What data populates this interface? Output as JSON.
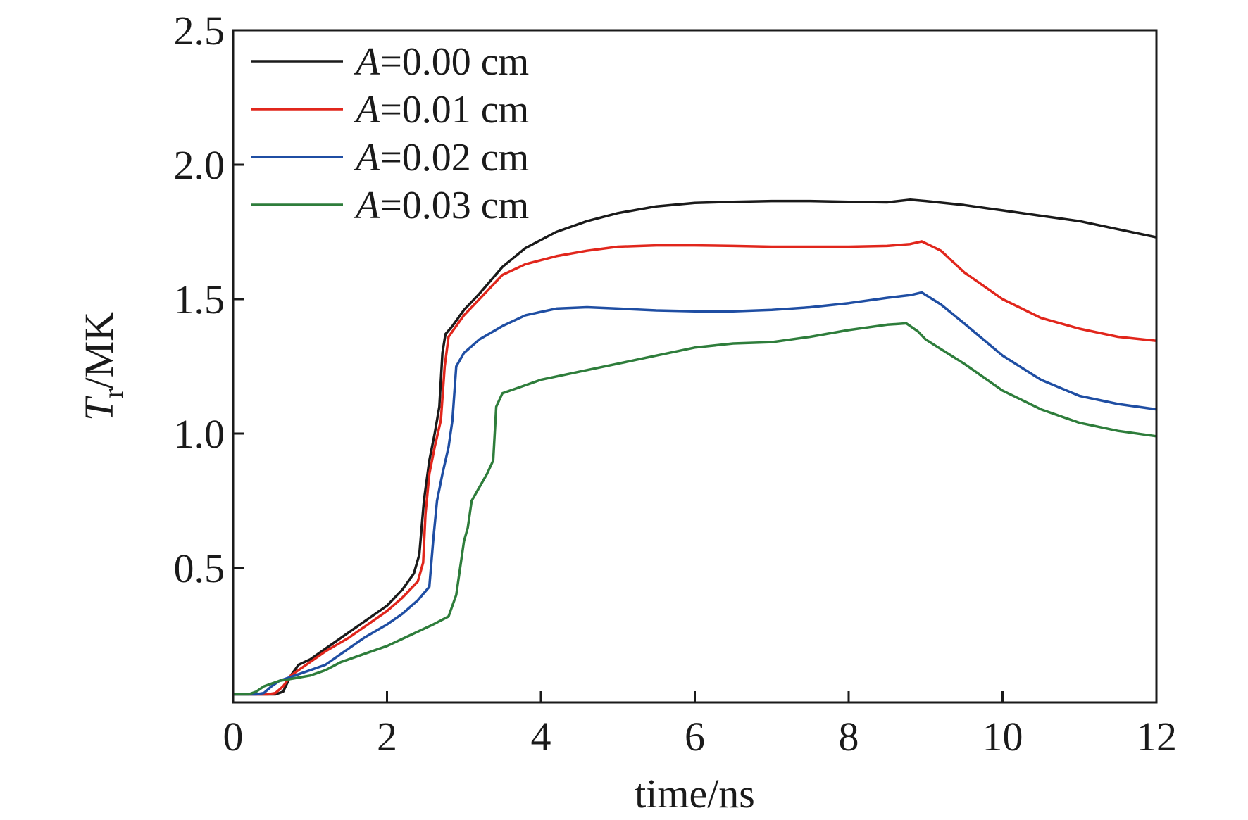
{
  "chart_data": {
    "type": "line",
    "xlabel": "time/ns",
    "ylabel": {
      "main": "T",
      "subscript": "r",
      "unit": "/MK"
    },
    "xlim": [
      0,
      12
    ],
    "ylim": [
      0,
      2.5
    ],
    "xticks": [
      0,
      2,
      4,
      6,
      8,
      10,
      12
    ],
    "xtick_labels": [
      "0",
      "2",
      "4",
      "6",
      "8",
      "10",
      "12"
    ],
    "yticks": [
      0.5,
      1.0,
      1.5,
      2.0,
      2.5
    ],
    "ytick_labels": [
      "0.5",
      "1.0",
      "1.5",
      "2.0",
      "2.5"
    ],
    "grid": false,
    "legend_position": "top-left",
    "series": [
      {
        "name_prefix": "A",
        "name_suffix": "=0.00 cm",
        "color": "#1a1a1a",
        "points": [
          [
            0,
            0.03
          ],
          [
            0.55,
            0.03
          ],
          [
            0.6,
            0.035
          ],
          [
            0.65,
            0.04
          ],
          [
            0.75,
            0.1
          ],
          [
            0.85,
            0.14
          ],
          [
            1.0,
            0.16
          ],
          [
            1.2,
            0.2
          ],
          [
            1.5,
            0.26
          ],
          [
            1.8,
            0.32
          ],
          [
            2.0,
            0.36
          ],
          [
            2.2,
            0.42
          ],
          [
            2.35,
            0.48
          ],
          [
            2.42,
            0.55
          ],
          [
            2.48,
            0.75
          ],
          [
            2.55,
            0.9
          ],
          [
            2.62,
            1.0
          ],
          [
            2.68,
            1.1
          ],
          [
            2.72,
            1.3
          ],
          [
            2.76,
            1.37
          ],
          [
            2.85,
            1.4
          ],
          [
            3.0,
            1.46
          ],
          [
            3.2,
            1.52
          ],
          [
            3.5,
            1.62
          ],
          [
            3.8,
            1.69
          ],
          [
            4.2,
            1.75
          ],
          [
            4.6,
            1.79
          ],
          [
            5.0,
            1.82
          ],
          [
            5.5,
            1.845
          ],
          [
            6.0,
            1.858
          ],
          [
            6.5,
            1.862
          ],
          [
            7.0,
            1.865
          ],
          [
            7.5,
            1.865
          ],
          [
            8.0,
            1.862
          ],
          [
            8.5,
            1.86
          ],
          [
            8.8,
            1.87
          ],
          [
            9.0,
            1.865
          ],
          [
            9.5,
            1.85
          ],
          [
            10.0,
            1.83
          ],
          [
            10.5,
            1.81
          ],
          [
            11.0,
            1.79
          ],
          [
            11.5,
            1.76
          ],
          [
            12.0,
            1.73
          ]
        ]
      },
      {
        "name_prefix": "A",
        "name_suffix": "=0.01 cm",
        "color": "#e1261c",
        "points": [
          [
            0,
            0.03
          ],
          [
            0.45,
            0.03
          ],
          [
            0.55,
            0.035
          ],
          [
            0.65,
            0.06
          ],
          [
            0.75,
            0.1
          ],
          [
            0.9,
            0.13
          ],
          [
            1.0,
            0.15
          ],
          [
            1.2,
            0.19
          ],
          [
            1.5,
            0.24
          ],
          [
            1.8,
            0.3
          ],
          [
            2.0,
            0.34
          ],
          [
            2.2,
            0.39
          ],
          [
            2.4,
            0.45
          ],
          [
            2.47,
            0.52
          ],
          [
            2.5,
            0.7
          ],
          [
            2.55,
            0.85
          ],
          [
            2.62,
            0.95
          ],
          [
            2.7,
            1.05
          ],
          [
            2.75,
            1.25
          ],
          [
            2.8,
            1.36
          ],
          [
            2.9,
            1.4
          ],
          [
            3.0,
            1.44
          ],
          [
            3.2,
            1.5
          ],
          [
            3.5,
            1.59
          ],
          [
            3.8,
            1.63
          ],
          [
            4.2,
            1.66
          ],
          [
            4.6,
            1.68
          ],
          [
            5.0,
            1.695
          ],
          [
            5.5,
            1.7
          ],
          [
            6.0,
            1.7
          ],
          [
            6.5,
            1.698
          ],
          [
            7.0,
            1.695
          ],
          [
            7.5,
            1.695
          ],
          [
            8.0,
            1.695
          ],
          [
            8.5,
            1.698
          ],
          [
            8.8,
            1.705
          ],
          [
            8.95,
            1.715
          ],
          [
            9.2,
            1.68
          ],
          [
            9.5,
            1.6
          ],
          [
            10.0,
            1.5
          ],
          [
            10.5,
            1.43
          ],
          [
            11.0,
            1.39
          ],
          [
            11.5,
            1.36
          ],
          [
            12.0,
            1.345
          ]
        ]
      },
      {
        "name_prefix": "A",
        "name_suffix": "=0.02 cm",
        "color": "#1f4ea3",
        "points": [
          [
            0,
            0.03
          ],
          [
            0.3,
            0.03
          ],
          [
            0.4,
            0.035
          ],
          [
            0.5,
            0.06
          ],
          [
            0.6,
            0.08
          ],
          [
            0.8,
            0.1
          ],
          [
            1.0,
            0.12
          ],
          [
            1.2,
            0.14
          ],
          [
            1.4,
            0.18
          ],
          [
            1.7,
            0.24
          ],
          [
            2.0,
            0.29
          ],
          [
            2.2,
            0.33
          ],
          [
            2.4,
            0.38
          ],
          [
            2.55,
            0.43
          ],
          [
            2.6,
            0.6
          ],
          [
            2.65,
            0.75
          ],
          [
            2.72,
            0.85
          ],
          [
            2.8,
            0.95
          ],
          [
            2.85,
            1.05
          ],
          [
            2.9,
            1.25
          ],
          [
            3.0,
            1.3
          ],
          [
            3.2,
            1.35
          ],
          [
            3.5,
            1.4
          ],
          [
            3.8,
            1.44
          ],
          [
            4.2,
            1.465
          ],
          [
            4.6,
            1.47
          ],
          [
            5.0,
            1.465
          ],
          [
            5.5,
            1.458
          ],
          [
            6.0,
            1.455
          ],
          [
            6.5,
            1.455
          ],
          [
            7.0,
            1.46
          ],
          [
            7.5,
            1.47
          ],
          [
            8.0,
            1.485
          ],
          [
            8.5,
            1.505
          ],
          [
            8.8,
            1.515
          ],
          [
            8.95,
            1.525
          ],
          [
            9.2,
            1.48
          ],
          [
            9.5,
            1.41
          ],
          [
            10.0,
            1.29
          ],
          [
            10.5,
            1.2
          ],
          [
            11.0,
            1.14
          ],
          [
            11.5,
            1.11
          ],
          [
            12.0,
            1.09
          ]
        ]
      },
      {
        "name_prefix": "A",
        "name_suffix": "=0.03 cm",
        "color": "#2e7d3b",
        "points": [
          [
            0,
            0.03
          ],
          [
            0.2,
            0.03
          ],
          [
            0.3,
            0.04
          ],
          [
            0.4,
            0.06
          ],
          [
            0.6,
            0.08
          ],
          [
            0.8,
            0.09
          ],
          [
            1.0,
            0.1
          ],
          [
            1.2,
            0.12
          ],
          [
            1.4,
            0.15
          ],
          [
            1.7,
            0.18
          ],
          [
            2.0,
            0.21
          ],
          [
            2.3,
            0.25
          ],
          [
            2.6,
            0.29
          ],
          [
            2.8,
            0.32
          ],
          [
            2.9,
            0.4
          ],
          [
            2.95,
            0.5
          ],
          [
            3.0,
            0.6
          ],
          [
            3.05,
            0.65
          ],
          [
            3.1,
            0.75
          ],
          [
            3.2,
            0.8
          ],
          [
            3.3,
            0.85
          ],
          [
            3.38,
            0.9
          ],
          [
            3.42,
            1.1
          ],
          [
            3.5,
            1.15
          ],
          [
            3.7,
            1.17
          ],
          [
            4.0,
            1.2
          ],
          [
            4.5,
            1.23
          ],
          [
            5.0,
            1.26
          ],
          [
            5.5,
            1.29
          ],
          [
            6.0,
            1.32
          ],
          [
            6.5,
            1.335
          ],
          [
            7.0,
            1.34
          ],
          [
            7.5,
            1.36
          ],
          [
            8.0,
            1.385
          ],
          [
            8.5,
            1.405
          ],
          [
            8.75,
            1.41
          ],
          [
            8.9,
            1.38
          ],
          [
            9.0,
            1.35
          ],
          [
            9.5,
            1.26
          ],
          [
            10.0,
            1.16
          ],
          [
            10.5,
            1.09
          ],
          [
            11.0,
            1.04
          ],
          [
            11.5,
            1.01
          ],
          [
            12.0,
            0.99
          ]
        ]
      }
    ]
  }
}
